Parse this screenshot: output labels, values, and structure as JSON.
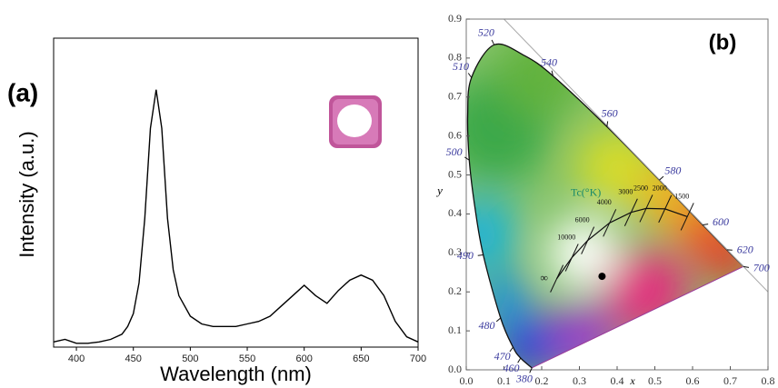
{
  "chart_data": [
    {
      "type": "line",
      "label": "(a)",
      "x_label": "Wavelength (nm)",
      "y_label": "Intensity (a.u.)",
      "x": [
        380,
        390,
        400,
        410,
        420,
        430,
        440,
        445,
        450,
        455,
        460,
        465,
        470,
        475,
        480,
        485,
        490,
        500,
        510,
        520,
        530,
        540,
        550,
        560,
        570,
        580,
        590,
        600,
        610,
        620,
        630,
        640,
        650,
        660,
        670,
        680,
        690,
        700
      ],
      "series": [
        {
          "color": "#000000",
          "values": [
            0.02,
            0.03,
            0.015,
            0.015,
            0.02,
            0.03,
            0.05,
            0.08,
            0.13,
            0.25,
            0.5,
            0.85,
            1.0,
            0.85,
            0.5,
            0.3,
            0.2,
            0.12,
            0.09,
            0.08,
            0.08,
            0.08,
            0.09,
            0.1,
            0.12,
            0.16,
            0.2,
            0.24,
            0.2,
            0.17,
            0.22,
            0.26,
            0.28,
            0.26,
            0.2,
            0.1,
            0.04,
            0.02
          ]
        }
      ],
      "xlim": [
        380,
        700
      ],
      "ylim": [
        0,
        1.2
      ],
      "xticks": [
        400,
        450,
        500,
        550,
        600,
        650,
        700
      ]
    },
    {
      "type": "scatter",
      "label": "(b)",
      "x_label": "x",
      "y_label": "y",
      "xlim": [
        0,
        0.8
      ],
      "ylim": [
        0,
        0.9
      ],
      "xticks": [
        {
          "value": 0,
          "label": "0.0"
        },
        0.1,
        0.2,
        0.3,
        0.4,
        0.5,
        0.6,
        0.7,
        0.8
      ],
      "yticks": [
        {
          "value": 0,
          "label": "0.0"
        },
        0.1,
        0.2,
        0.3,
        0.4,
        0.5,
        0.6,
        0.7,
        0.8,
        0.9
      ],
      "points": {
        "x": [
          0.36
        ],
        "y": [
          0.24
        ],
        "color": "#000000"
      },
      "spectral_locus": {
        "labels": [
          "380",
          "460",
          "470",
          "480",
          "490",
          null,
          "500",
          null,
          "510",
          "520",
          null,
          "540",
          "560",
          "580",
          "600",
          "620",
          "700"
        ],
        "x": [
          0.1741,
          0.144,
          0.124,
          0.091,
          0.045,
          0.0235,
          0.008,
          0.0039,
          0.0139,
          0.074,
          0.155,
          0.23,
          0.373,
          0.512,
          0.627,
          0.691,
          0.735
        ],
        "y": [
          0.005,
          0.03,
          0.058,
          0.133,
          0.295,
          0.4127,
          0.538,
          0.6548,
          0.75,
          0.834,
          0.806,
          0.754,
          0.624,
          0.487,
          0.372,
          0.308,
          0.265
        ]
      },
      "planckian_locus": {
        "title": "Tc(°K)",
        "labels": [
          "∞",
          "10000",
          "6000",
          "4000",
          "3000",
          "2500",
          "2000",
          "1500"
        ],
        "x": [
          0.24,
          0.28,
          0.322,
          0.38,
          0.437,
          0.477,
          0.527,
          0.586
        ],
        "y": [
          0.234,
          0.288,
          0.332,
          0.377,
          0.404,
          0.414,
          0.413,
          0.393
        ]
      }
    }
  ]
}
